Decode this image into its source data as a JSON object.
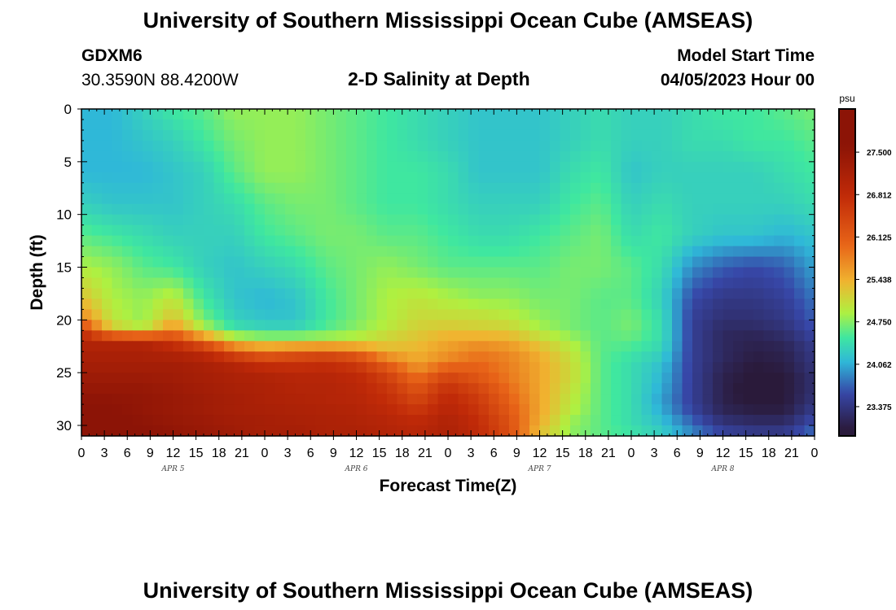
{
  "header": {
    "title": "University of Southern Mississippi Ocean Cube (AMSEAS)",
    "station_id": "GDXM6",
    "coordinates": "30.3590N  88.4200W",
    "chart_title": "2-D Salinity at Depth",
    "model_start_label": "Model Start Time",
    "model_start_value": "04/05/2023 Hour 00"
  },
  "footer": {
    "title": "University of Southern Mississippi Ocean Cube (AMSEAS)"
  },
  "chart_data": {
    "type": "heatmap",
    "title": "2-D Salinity at Depth",
    "xlabel": "Forecast Time(Z)",
    "ylabel": "Depth (ft)",
    "x_hours_range": [
      0,
      96
    ],
    "x_tick_step_hours": 3,
    "x_tick_labels": [
      "0",
      "3",
      "6",
      "9",
      "12",
      "15",
      "18",
      "21",
      "0",
      "3",
      "6",
      "9",
      "12",
      "15",
      "18",
      "21",
      "0",
      "3",
      "6",
      "9",
      "12",
      "15",
      "18",
      "21",
      "0",
      "3",
      "6",
      "9",
      "12",
      "15",
      "18",
      "21",
      "0"
    ],
    "day_labels": [
      {
        "label": "APR 5",
        "hour": 12
      },
      {
        "label": "APR 6",
        "hour": 36
      },
      {
        "label": "APR 7",
        "hour": 60
      },
      {
        "label": "APR 8",
        "hour": 84
      }
    ],
    "y_range": [
      0,
      31
    ],
    "y_ticks": [
      0,
      5,
      10,
      15,
      20,
      25,
      30
    ],
    "y_inverted": true,
    "colorbar": {
      "unit": "psu",
      "range": [
        22.9,
        28.2
      ],
      "tick_values": [
        27.5,
        26.812,
        26.125,
        25.438,
        24.75,
        24.062,
        23.375
      ],
      "tick_labels": [
        "27.500",
        "26.812",
        "26.125",
        "25.438",
        "24.750",
        "24.062",
        "23.375"
      ]
    },
    "value_stops": [
      23.0,
      23.6,
      24.1,
      24.5,
      24.9,
      25.4,
      26.0,
      26.8,
      27.6
    ],
    "color_stops": [
      "#2a1a3a",
      "#3747a8",
      "#2fb8d8",
      "#3fe7a0",
      "#b0f040",
      "#f0b430",
      "#e86418",
      "#c02a08",
      "#8c1406"
    ],
    "time_hours": [
      0,
      4,
      8,
      12,
      16,
      20,
      24,
      28,
      32,
      36,
      40,
      44,
      48,
      52,
      56,
      60,
      64,
      68,
      72,
      76,
      80,
      84,
      88,
      92,
      96
    ],
    "depths_ft": [
      0,
      3,
      6,
      9,
      12,
      15,
      18,
      20,
      21,
      22,
      23,
      24,
      25,
      26,
      27,
      28,
      29,
      30,
      31
    ],
    "salinity": [
      [
        24.1,
        24.1,
        24.3,
        24.5,
        24.6,
        24.8,
        24.8,
        24.8,
        24.7,
        24.6,
        24.5,
        24.4,
        24.3,
        24.2,
        24.2,
        24.2,
        24.3,
        24.4,
        24.3,
        24.3,
        24.4,
        24.5,
        24.5,
        24.6,
        24.7
      ],
      [
        24.1,
        24.1,
        24.2,
        24.3,
        24.5,
        24.7,
        24.8,
        24.8,
        24.7,
        24.6,
        24.5,
        24.4,
        24.3,
        24.2,
        24.2,
        24.2,
        24.3,
        24.4,
        24.3,
        24.3,
        24.4,
        24.4,
        24.5,
        24.5,
        24.6
      ],
      [
        24.1,
        24.1,
        24.1,
        24.2,
        24.3,
        24.6,
        24.8,
        24.8,
        24.7,
        24.6,
        24.5,
        24.5,
        24.4,
        24.2,
        24.2,
        24.2,
        24.4,
        24.5,
        24.2,
        24.3,
        24.3,
        24.3,
        24.3,
        24.4,
        24.5
      ],
      [
        24.3,
        24.2,
        24.2,
        24.2,
        24.3,
        24.4,
        24.6,
        24.7,
        24.7,
        24.6,
        24.5,
        24.5,
        24.4,
        24.3,
        24.3,
        24.3,
        24.5,
        24.6,
        24.3,
        24.4,
        24.3,
        24.3,
        24.3,
        24.3,
        24.4
      ],
      [
        24.6,
        24.5,
        24.4,
        24.3,
        24.3,
        24.3,
        24.5,
        24.6,
        24.7,
        24.7,
        24.6,
        24.6,
        24.5,
        24.4,
        24.4,
        24.5,
        24.6,
        24.7,
        24.4,
        24.5,
        24.3,
        24.2,
        24.2,
        24.1,
        24.2
      ],
      [
        24.9,
        24.8,
        24.6,
        24.5,
        24.3,
        24.2,
        24.3,
        24.4,
        24.6,
        24.7,
        24.8,
        24.7,
        24.6,
        24.6,
        24.6,
        24.6,
        24.7,
        24.7,
        24.6,
        24.4,
        23.9,
        23.7,
        23.6,
        23.7,
        24.0
      ],
      [
        25.3,
        24.9,
        24.8,
        25.0,
        24.5,
        24.2,
        24.1,
        24.2,
        24.5,
        24.7,
        24.9,
        25.0,
        24.9,
        24.8,
        24.8,
        24.7,
        24.7,
        24.6,
        24.6,
        24.3,
        23.6,
        23.4,
        23.4,
        23.5,
        23.8
      ],
      [
        25.8,
        25.0,
        24.8,
        25.3,
        24.7,
        24.3,
        24.2,
        24.2,
        24.5,
        24.7,
        24.9,
        25.1,
        25.1,
        25.1,
        25.0,
        24.8,
        24.7,
        24.6,
        24.7,
        24.4,
        23.5,
        23.3,
        23.3,
        23.4,
        23.7
      ],
      [
        26.6,
        25.3,
        25.0,
        25.8,
        25.0,
        24.5,
        24.4,
        24.4,
        24.6,
        24.8,
        25.0,
        25.2,
        25.3,
        25.2,
        25.2,
        24.9,
        24.7,
        24.6,
        24.7,
        24.4,
        23.5,
        23.2,
        23.2,
        23.3,
        23.6
      ],
      [
        27.0,
        27.0,
        27.0,
        26.6,
        26.0,
        25.2,
        25.0,
        25.0,
        25.0,
        25.0,
        25.2,
        25.3,
        25.5,
        25.6,
        25.5,
        25.2,
        24.9,
        24.6,
        24.6,
        24.4,
        23.5,
        23.2,
        23.1,
        23.2,
        23.5
      ],
      [
        27.1,
        27.1,
        27.1,
        27.0,
        26.8,
        26.2,
        25.9,
        26.1,
        26.2,
        26.0,
        25.4,
        25.4,
        25.6,
        25.8,
        25.7,
        25.4,
        25.0,
        24.6,
        24.5,
        24.3,
        23.5,
        23.2,
        23.1,
        23.1,
        23.4
      ],
      [
        27.2,
        27.2,
        27.2,
        27.2,
        27.1,
        26.9,
        26.6,
        26.6,
        26.7,
        26.5,
        26.0,
        25.5,
        25.8,
        26.0,
        25.8,
        25.5,
        25.1,
        24.6,
        24.4,
        24.2,
        23.5,
        23.2,
        23.0,
        23.1,
        23.4
      ],
      [
        27.3,
        27.3,
        27.3,
        27.3,
        27.2,
        27.1,
        27.0,
        26.9,
        26.9,
        26.8,
        26.4,
        25.8,
        26.3,
        26.1,
        25.8,
        25.5,
        25.1,
        24.6,
        24.4,
        24.1,
        23.5,
        23.1,
        23.0,
        23.0,
        23.3
      ],
      [
        27.4,
        27.4,
        27.4,
        27.3,
        27.2,
        27.1,
        27.1,
        27.0,
        27.0,
        26.9,
        26.6,
        26.1,
        26.6,
        26.3,
        25.9,
        25.5,
        25.1,
        24.6,
        24.4,
        24.1,
        23.5,
        23.1,
        22.95,
        23.0,
        23.3
      ],
      [
        27.5,
        27.5,
        27.5,
        27.4,
        27.3,
        27.2,
        27.1,
        27.0,
        27.0,
        26.9,
        26.7,
        26.3,
        26.8,
        26.5,
        26.0,
        25.5,
        25.0,
        24.6,
        24.4,
        24.0,
        23.5,
        23.1,
        22.9,
        23.0,
        23.3
      ],
      [
        27.6,
        27.6,
        27.5,
        27.4,
        27.3,
        27.2,
        27.1,
        27.1,
        27.0,
        27.0,
        26.8,
        26.5,
        26.9,
        26.6,
        26.1,
        25.5,
        25.0,
        24.6,
        24.4,
        24.0,
        23.5,
        23.1,
        23.0,
        23.0,
        23.4
      ],
      [
        27.7,
        27.6,
        27.5,
        27.4,
        27.3,
        27.2,
        27.2,
        27.1,
        27.1,
        27.0,
        26.9,
        26.7,
        27.0,
        26.7,
        26.2,
        25.5,
        24.9,
        24.6,
        24.4,
        24.1,
        23.6,
        23.2,
        23.1,
        23.1,
        23.5
      ],
      [
        27.8,
        27.7,
        27.6,
        27.5,
        27.4,
        27.3,
        27.2,
        27.2,
        27.1,
        27.1,
        27.0,
        26.9,
        27.1,
        26.8,
        26.3,
        25.4,
        24.8,
        24.6,
        24.4,
        24.2,
        23.8,
        23.4,
        23.3,
        23.3,
        23.7
      ],
      [
        27.8,
        27.7,
        27.6,
        27.5,
        27.4,
        27.3,
        27.2,
        27.2,
        27.1,
        27.1,
        27.0,
        26.9,
        27.1,
        26.8,
        26.3,
        25.3,
        24.8,
        24.6,
        24.5,
        24.3,
        23.9,
        23.6,
        23.5,
        23.5,
        23.8
      ]
    ]
  }
}
